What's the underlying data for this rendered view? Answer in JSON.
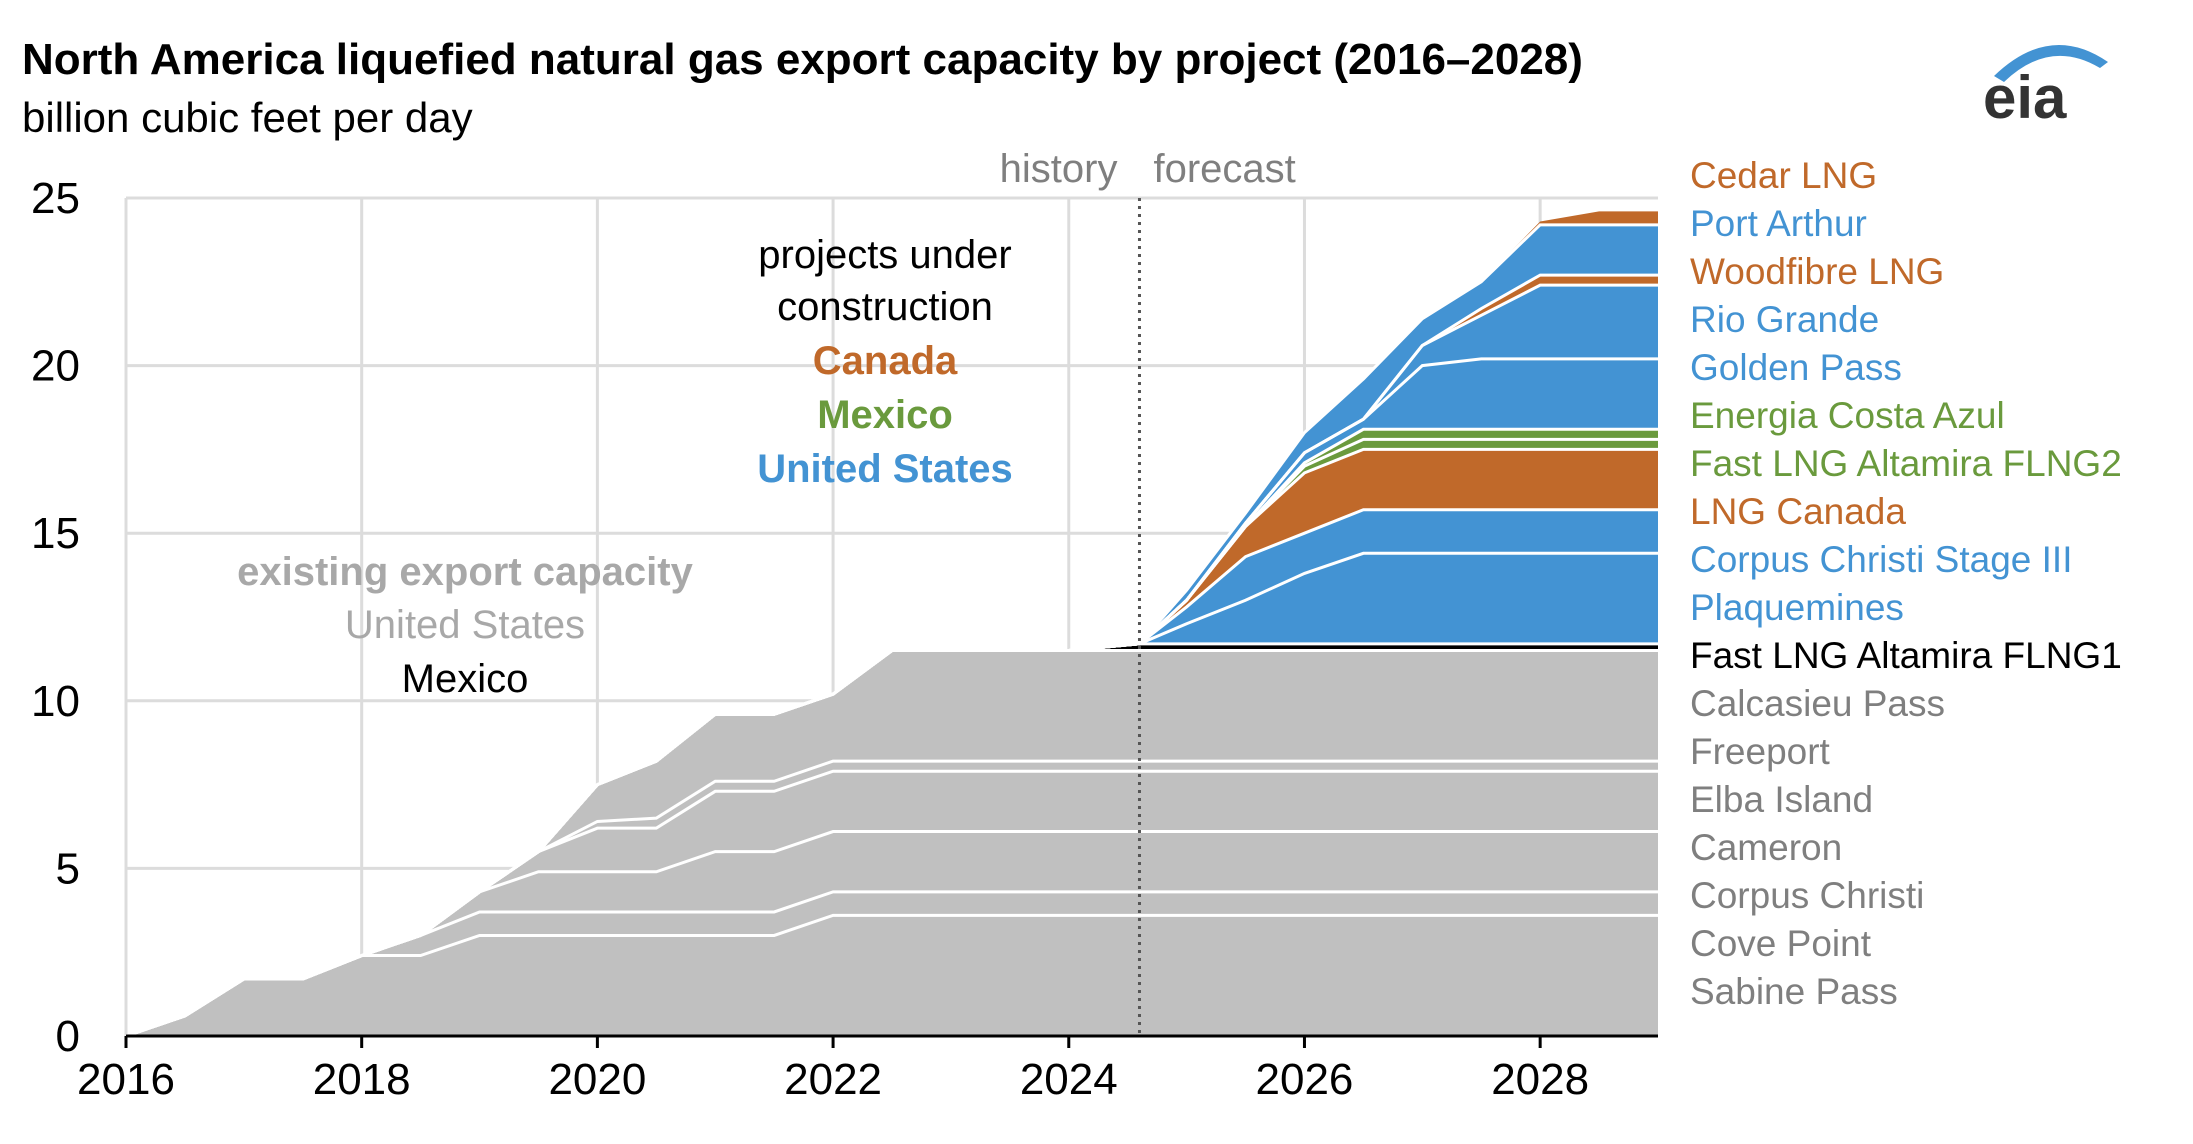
{
  "title": "North America liquefied natural gas export capacity by project (2016–2028)",
  "subtitle": "billion cubic feet per day",
  "logo_text": "eia",
  "annotations": {
    "history": "history",
    "forecast": "forecast",
    "under_construction_1": "projects under",
    "under_construction_2": "construction",
    "canada": "Canada",
    "mexico": "Mexico",
    "united_states": "United States",
    "existing": "existing export capacity",
    "existing_us": "United States",
    "existing_mexico": "Mexico"
  },
  "colors": {
    "existing": "#c0c0c0",
    "us": "#4393d3",
    "canada": "#c0692a",
    "mexico": "#6a9a3d",
    "mexico_existing": "#000000",
    "grid": "#dcdcdc",
    "existing_label": "#7f7f7f",
    "existing_heading": "#a8a8a8"
  },
  "chart_data": {
    "type": "area",
    "stacked": true,
    "xlim": [
      2016,
      2029
    ],
    "ylim": [
      0,
      25
    ],
    "xticks": [
      "2016",
      "2018",
      "2020",
      "2022",
      "2024",
      "2026",
      "2028"
    ],
    "yticks": [
      "0",
      "5",
      "10",
      "15",
      "20",
      "25"
    ],
    "forecast_start": 2024.6,
    "grid": true,
    "legend_placement": "right",
    "x": [
      2016,
      2016.5,
      2017,
      2017.5,
      2018,
      2018.5,
      2019,
      2019.5,
      2020,
      2020.5,
      2021,
      2021.5,
      2022,
      2022.5,
      2023,
      2023.5,
      2024,
      2024.3,
      2024.6,
      2025,
      2025.5,
      2026,
      2026.5,
      2027,
      2027.5,
      2028,
      2028.5,
      2029
    ],
    "series": [
      {
        "name": "Sabine Pass",
        "group": "existing",
        "values": [
          0,
          0.6,
          1.7,
          1.7,
          2.4,
          2.4,
          3.0,
          3.0,
          3.0,
          3.0,
          3.0,
          3.0,
          3.6,
          3.6,
          3.6,
          3.6,
          3.6,
          3.6,
          3.6,
          3.6,
          3.6,
          3.6,
          3.6,
          3.6,
          3.6,
          3.6,
          3.6,
          3.6
        ]
      },
      {
        "name": "Cove Point",
        "group": "existing",
        "values": [
          0,
          0,
          0,
          0,
          0,
          0.6,
          0.7,
          0.7,
          0.7,
          0.7,
          0.7,
          0.7,
          0.7,
          0.7,
          0.7,
          0.7,
          0.7,
          0.7,
          0.7,
          0.7,
          0.7,
          0.7,
          0.7,
          0.7,
          0.7,
          0.7,
          0.7,
          0.7
        ]
      },
      {
        "name": "Corpus Christi",
        "group": "existing",
        "values": [
          0,
          0,
          0,
          0,
          0,
          0,
          0.6,
          1.2,
          1.2,
          1.2,
          1.8,
          1.8,
          1.8,
          1.8,
          1.8,
          1.8,
          1.8,
          1.8,
          1.8,
          1.8,
          1.8,
          1.8,
          1.8,
          1.8,
          1.8,
          1.8,
          1.8,
          1.8
        ]
      },
      {
        "name": "Cameron",
        "group": "existing",
        "values": [
          0,
          0,
          0,
          0,
          0,
          0,
          0,
          0.6,
          1.3,
          1.3,
          1.8,
          1.8,
          1.8,
          1.8,
          1.8,
          1.8,
          1.8,
          1.8,
          1.8,
          1.8,
          1.8,
          1.8,
          1.8,
          1.8,
          1.8,
          1.8,
          1.8,
          1.8
        ]
      },
      {
        "name": "Elba Island",
        "group": "existing",
        "values": [
          0,
          0,
          0,
          0,
          0,
          0,
          0,
          0,
          0.2,
          0.3,
          0.3,
          0.3,
          0.3,
          0.3,
          0.3,
          0.3,
          0.3,
          0.3,
          0.3,
          0.3,
          0.3,
          0.3,
          0.3,
          0.3,
          0.3,
          0.3,
          0.3,
          0.3
        ]
      },
      {
        "name": "Freeport",
        "group": "existing",
        "values": [
          0,
          0,
          0,
          0,
          0,
          0,
          0,
          0,
          1.1,
          1.7,
          2.0,
          2.0,
          2.0,
          3.3,
          3.3,
          3.3,
          3.3,
          3.3,
          3.3,
          3.3,
          3.3,
          3.3,
          3.3,
          3.3,
          3.3,
          3.3,
          3.3,
          3.3
        ]
      },
      {
        "name": "Calcasieu Pass",
        "group": "existing",
        "values": [
          0,
          0,
          0,
          0,
          0,
          0,
          0,
          0,
          0,
          0,
          0,
          0,
          0,
          0,
          0,
          0,
          0,
          0,
          0,
          0,
          0,
          0,
          0,
          0,
          0,
          0,
          0,
          0
        ]
      },
      {
        "name": "Fast LNG Altamira FLNG1",
        "group": "mexico_existing",
        "values": [
          0,
          0,
          0,
          0,
          0,
          0,
          0,
          0,
          0,
          0,
          0,
          0,
          0,
          0,
          0,
          0,
          0,
          0.1,
          0.2,
          0.2,
          0.2,
          0.2,
          0.2,
          0.2,
          0.2,
          0.2,
          0.2,
          0.2
        ]
      },
      {
        "name": "Plaquemines",
        "group": "us",
        "values": [
          0,
          0,
          0,
          0,
          0,
          0,
          0,
          0,
          0,
          0,
          0,
          0,
          0,
          0,
          0,
          0,
          0,
          0,
          0,
          0.6,
          1.3,
          2.1,
          2.7,
          2.7,
          2.7,
          2.7,
          2.7,
          2.7
        ]
      },
      {
        "name": "Corpus Christi Stage III",
        "group": "us",
        "values": [
          0,
          0,
          0,
          0,
          0,
          0,
          0,
          0,
          0,
          0,
          0,
          0,
          0,
          0,
          0,
          0,
          0,
          0,
          0,
          0.5,
          1.3,
          1.2,
          1.3,
          1.3,
          1.3,
          1.3,
          1.3,
          1.3
        ]
      },
      {
        "name": "LNG Canada",
        "group": "canada",
        "values": [
          0,
          0,
          0,
          0,
          0,
          0,
          0,
          0,
          0,
          0,
          0,
          0,
          0,
          0,
          0,
          0,
          0,
          0,
          0,
          0.2,
          0.9,
          1.8,
          1.8,
          1.8,
          1.8,
          1.8,
          1.8,
          1.8
        ]
      },
      {
        "name": "Fast LNG Altamira FLNG2",
        "group": "mexico",
        "values": [
          0,
          0,
          0,
          0,
          0,
          0,
          0,
          0,
          0,
          0,
          0,
          0,
          0,
          0,
          0,
          0,
          0,
          0,
          0,
          0,
          0,
          0.2,
          0.3,
          0.3,
          0.3,
          0.3,
          0.3,
          0.3
        ]
      },
      {
        "name": "Energia Costa Azul",
        "group": "mexico",
        "values": [
          0,
          0,
          0,
          0,
          0,
          0,
          0,
          0,
          0,
          0,
          0,
          0,
          0,
          0,
          0,
          0,
          0,
          0,
          0,
          0,
          0,
          0.1,
          0.3,
          0.3,
          0.3,
          0.3,
          0.3,
          0.3
        ]
      },
      {
        "name": "Golden Pass",
        "group": "us",
        "values": [
          0,
          0,
          0,
          0,
          0,
          0,
          0,
          0,
          0,
          0,
          0,
          0,
          0,
          0,
          0,
          0,
          0,
          0,
          0,
          0,
          0.1,
          0.3,
          0.3,
          1.9,
          2.1,
          2.1,
          2.1,
          2.1
        ]
      },
      {
        "name": "Rio Grande",
        "group": "us",
        "values": [
          0,
          0,
          0,
          0,
          0,
          0,
          0,
          0,
          0,
          0,
          0,
          0,
          0,
          0,
          0,
          0,
          0,
          0,
          0,
          0,
          0,
          0,
          0,
          0.6,
          1.3,
          2.2,
          2.2,
          2.2
        ]
      },
      {
        "name": "Woodfibre LNG",
        "group": "canada",
        "values": [
          0,
          0,
          0,
          0,
          0,
          0,
          0,
          0,
          0,
          0,
          0,
          0,
          0,
          0,
          0,
          0,
          0,
          0,
          0,
          0,
          0,
          0,
          0,
          0,
          0.2,
          0.3,
          0.3,
          0.3
        ]
      },
      {
        "name": "Port Arthur",
        "group": "us",
        "values": [
          0,
          0,
          0,
          0,
          0,
          0,
          0,
          0,
          0,
          0,
          0,
          0,
          0,
          0,
          0,
          0,
          0,
          0,
          0,
          0.3,
          0.3,
          0.6,
          1.2,
          0.8,
          0.8,
          1.5,
          1.5,
          1.5
        ]
      },
      {
        "name": "Cedar LNG",
        "group": "canada",
        "values": [
          0,
          0,
          0,
          0,
          0,
          0,
          0,
          0,
          0,
          0,
          0,
          0,
          0,
          0,
          0,
          0,
          0,
          0,
          0,
          0,
          0,
          0,
          0,
          0,
          0,
          0.1,
          0.4,
          0.4
        ]
      }
    ],
    "legend_order": [
      "Cedar LNG",
      "Port Arthur",
      "Woodfibre LNG",
      "Rio Grande",
      "Golden Pass",
      "Energia Costa Azul",
      "Fast LNG Altamira FLNG2",
      "LNG Canada",
      "Corpus Christi Stage III",
      "Plaquemines",
      "Fast LNG Altamira FLNG1",
      "Calcasieu Pass",
      "Freeport",
      "Elba Island",
      "Cameron",
      "Corpus Christi",
      "Cove Point",
      "Sabine Pass"
    ]
  }
}
